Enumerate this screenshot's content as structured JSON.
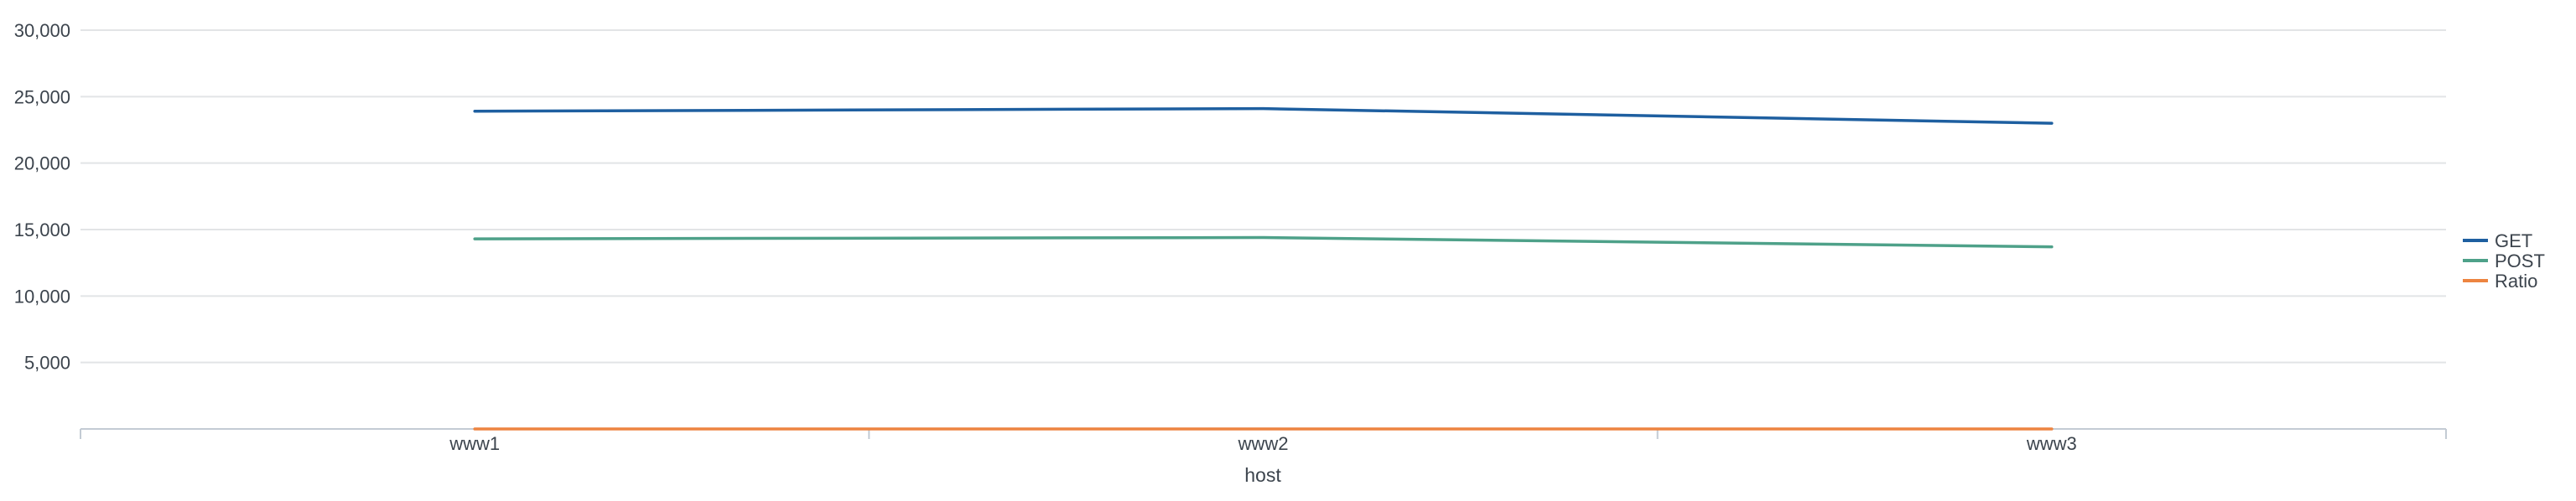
{
  "chart_data": {
    "type": "line",
    "xlabel": "host",
    "ylabel": "",
    "categories": [
      "www1",
      "www2",
      "www3"
    ],
    "ylim": [
      0,
      30000
    ],
    "yticks": [
      5000,
      10000,
      15000,
      20000,
      25000,
      30000
    ],
    "ytick_labels": [
      "5,000",
      "10,000",
      "15,000",
      "20,000",
      "25,000",
      "30,000"
    ],
    "grid": true,
    "legend_position": "right",
    "series": [
      {
        "name": "GET",
        "color": "#1e5fa0",
        "values": [
          23900,
          24100,
          23000
        ]
      },
      {
        "name": "POST",
        "color": "#4ea189",
        "values": [
          14300,
          14400,
          13700
        ]
      },
      {
        "name": "Ratio",
        "color": "#ed8440",
        "values": [
          1.67,
          1.67,
          1.68
        ]
      }
    ]
  }
}
